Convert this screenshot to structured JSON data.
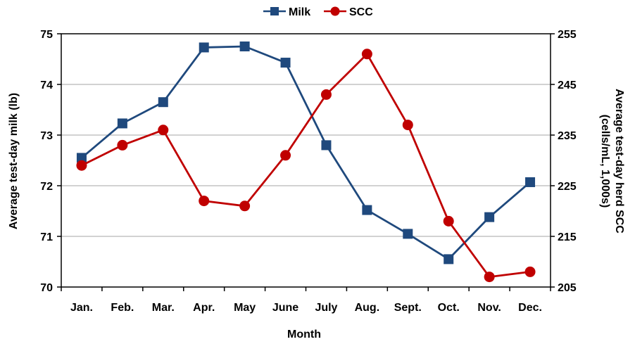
{
  "chart_data": {
    "type": "line",
    "categories": [
      "Jan.",
      "Feb.",
      "Mar.",
      "Apr.",
      "May",
      "June",
      "July",
      "Aug.",
      "Sept.",
      "Oct.",
      "Nov.",
      "Dec."
    ],
    "series": [
      {
        "name": "Milk",
        "axis": "left",
        "color": "#1f497d",
        "marker": "square",
        "values": [
          72.55,
          73.23,
          73.65,
          74.73,
          74.75,
          74.43,
          72.8,
          71.52,
          71.05,
          70.55,
          71.38,
          72.07
        ]
      },
      {
        "name": "SCC",
        "axis": "right",
        "color": "#c00000",
        "marker": "circle",
        "values": [
          229,
          233,
          236,
          222,
          221,
          231,
          243,
          251,
          237,
          218,
          207,
          208
        ]
      }
    ],
    "xlabel": "Month",
    "ylabel": "Average test-day milk (lb)",
    "ylabel_right_line1": "Average test-day herd SCC",
    "ylabel_right_line2": "(cells/mL, 1,000s)",
    "ylim": [
      70,
      75
    ],
    "ylim_right": [
      205,
      255
    ],
    "yticks": [
      "70",
      "71",
      "72",
      "73",
      "74",
      "75"
    ],
    "yticks_right": [
      "205",
      "215",
      "225",
      "235",
      "245",
      "255"
    ],
    "grid": true,
    "legend_position": "top-center"
  }
}
